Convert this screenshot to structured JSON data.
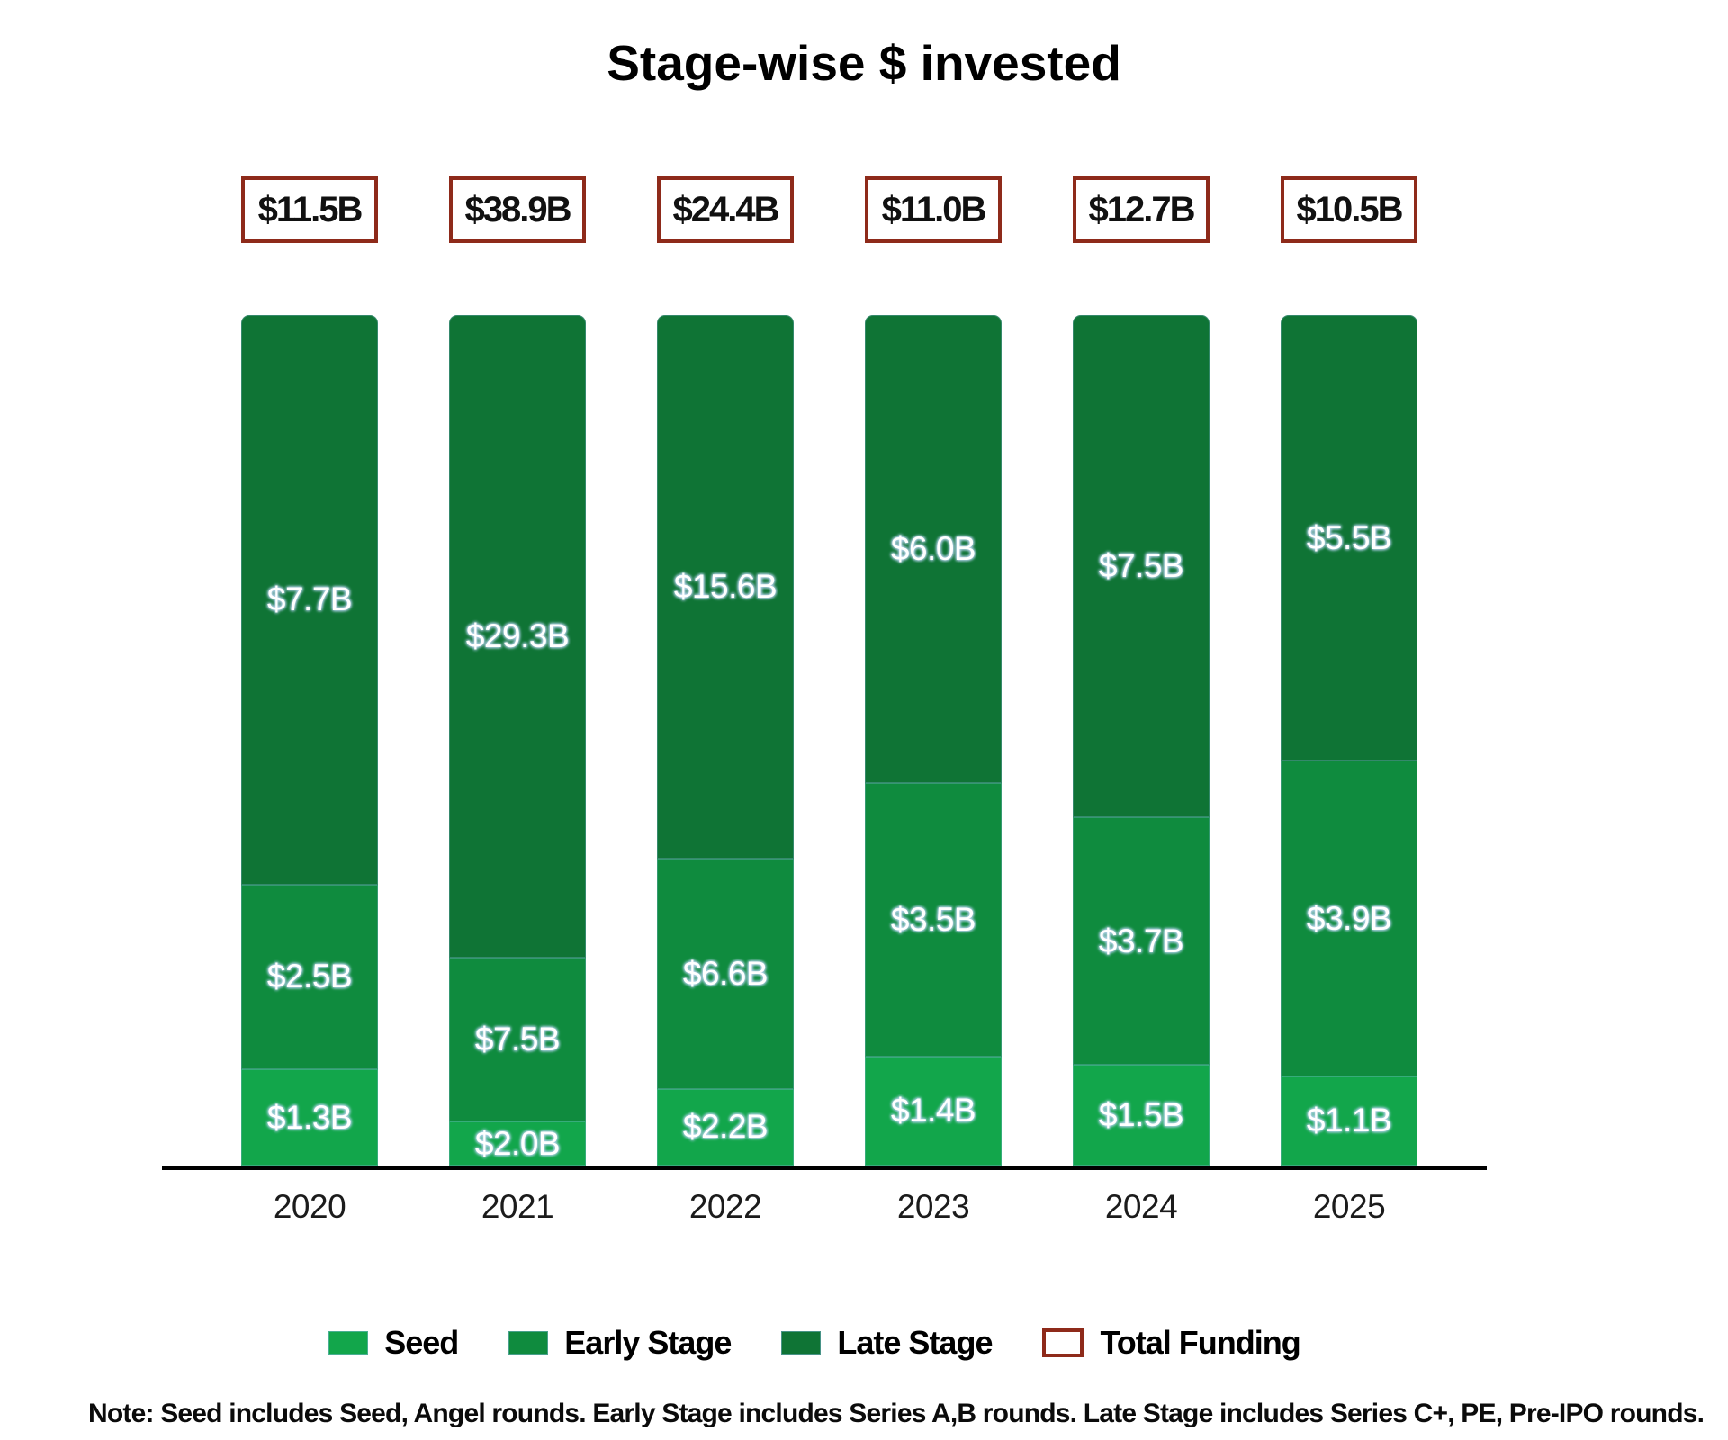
{
  "title": "Stage-wise $ invested",
  "note": "Note: Seed includes Seed, Angel rounds. Early Stage includes Series A,B rounds. Late Stage includes Series C+, PE, Pre-IPO rounds.",
  "colors": {
    "seed": "#12A64B",
    "early": "#0F8B3E",
    "late": "#0F7435",
    "total_border": "#8E2A1A",
    "label_halo": "#B7D3EF",
    "axis": "#000000"
  },
  "legend": [
    {
      "label": "Seed",
      "swatch": "fill-seed"
    },
    {
      "label": "Early Stage",
      "swatch": "fill-early"
    },
    {
      "label": "Late Stage",
      "swatch": "fill-late"
    },
    {
      "label": "Total Funding",
      "swatch": "outline-darkred"
    }
  ],
  "chart_data": {
    "type": "bar",
    "stacking": "100pct-stacked",
    "title": "Stage-wise $ invested",
    "xlabel": "",
    "ylabel": "",
    "unit": "$B",
    "grid": false,
    "legend_position": "bottom",
    "categories": [
      "2020",
      "2021",
      "2022",
      "2023",
      "2024",
      "2025"
    ],
    "series": [
      {
        "name": "Seed",
        "values": [
          1.3,
          2.0,
          2.2,
          1.4,
          1.5,
          1.1
        ]
      },
      {
        "name": "Early Stage",
        "values": [
          2.5,
          7.5,
          6.6,
          3.5,
          3.7,
          3.9
        ]
      },
      {
        "name": "Late Stage",
        "values": [
          7.7,
          29.3,
          15.6,
          6.0,
          7.5,
          5.5
        ]
      }
    ],
    "totals": [
      11.5,
      38.9,
      24.4,
      11.0,
      12.7,
      10.5
    ],
    "columns": [
      {
        "year": "2020",
        "total_label": "$11.5B",
        "seed": 1.3,
        "early": 2.5,
        "late": 7.7,
        "seed_label": "$1.3B",
        "early_label": "$2.5B",
        "late_label": "$7.7B"
      },
      {
        "year": "2021",
        "total_label": "$38.9B",
        "seed": 2.0,
        "early": 7.5,
        "late": 29.3,
        "seed_label": "$2.0B",
        "early_label": "$7.5B",
        "late_label": "$29.3B"
      },
      {
        "year": "2022",
        "total_label": "$24.4B",
        "seed": 2.2,
        "early": 6.6,
        "late": 15.6,
        "seed_label": "$2.2B",
        "early_label": "$6.6B",
        "late_label": "$15.6B"
      },
      {
        "year": "2023",
        "total_label": "$11.0B",
        "seed": 1.4,
        "early": 3.5,
        "late": 6.0,
        "seed_label": "$1.4B",
        "early_label": "$3.5B",
        "late_label": "$6.0B"
      },
      {
        "year": "2024",
        "total_label": "$12.7B",
        "seed": 1.5,
        "early": 3.7,
        "late": 7.5,
        "seed_label": "$1.5B",
        "early_label": "$3.7B",
        "late_label": "$7.5B"
      },
      {
        "year": "2025",
        "total_label": "$10.5B",
        "seed": 1.1,
        "early": 3.9,
        "late": 5.5,
        "seed_label": "$1.1B",
        "early_label": "$3.9B",
        "late_label": "$5.5B"
      }
    ]
  }
}
